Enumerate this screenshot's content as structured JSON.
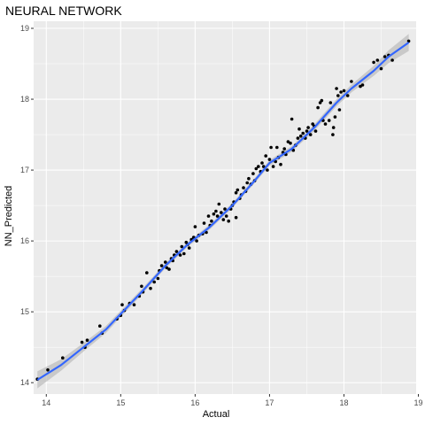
{
  "chart_data": {
    "type": "scatter",
    "title": "NEURAL NETWORK",
    "xlabel": "Actual",
    "ylabel": "NN_Predicted",
    "xlim": [
      13.83,
      18.97
    ],
    "ylim": [
      13.84,
      19.1
    ],
    "x_ticks": [
      "14",
      "15",
      "16",
      "17",
      "18",
      "19"
    ],
    "y_ticks": [
      "14",
      "15",
      "16",
      "17",
      "18",
      "19"
    ],
    "grid": true,
    "legend": "none",
    "colors": {
      "panel_background": "#ebebeb",
      "grid_major": "#ffffff",
      "points": "#000000",
      "smooth_line": "#3366ff",
      "confidence_band": "#bdbdbd"
    },
    "smooth_line": [
      [
        13.88,
        14.04
      ],
      [
        14.2,
        14.25
      ],
      [
        14.5,
        14.5
      ],
      [
        14.8,
        14.75
      ],
      [
        15.0,
        14.97
      ],
      [
        15.3,
        15.3
      ],
      [
        15.6,
        15.65
      ],
      [
        15.9,
        15.95
      ],
      [
        16.2,
        16.2
      ],
      [
        16.5,
        16.5
      ],
      [
        16.8,
        16.85
      ],
      [
        17.0,
        17.1
      ],
      [
        17.3,
        17.3
      ],
      [
        17.6,
        17.6
      ],
      [
        17.9,
        17.95
      ],
      [
        18.1,
        18.15
      ],
      [
        18.4,
        18.4
      ],
      [
        18.6,
        18.6
      ],
      [
        18.87,
        18.8
      ]
    ],
    "band_halfwidth": [
      0.12,
      0.08,
      0.06,
      0.05,
      0.045,
      0.04,
      0.035,
      0.035,
      0.035,
      0.035,
      0.035,
      0.04,
      0.04,
      0.045,
      0.05,
      0.055,
      0.07,
      0.09,
      0.12
    ],
    "points": [
      [
        13.88,
        14.05
      ],
      [
        14.02,
        14.18
      ],
      [
        14.22,
        14.35
      ],
      [
        14.48,
        14.57
      ],
      [
        14.52,
        14.5
      ],
      [
        14.55,
        14.6
      ],
      [
        14.72,
        14.8
      ],
      [
        14.75,
        14.7
      ],
      [
        14.95,
        14.9
      ],
      [
        15.0,
        14.95
      ],
      [
        15.02,
        15.1
      ],
      [
        15.05,
        15.02
      ],
      [
        15.12,
        15.12
      ],
      [
        15.18,
        15.1
      ],
      [
        15.25,
        15.22
      ],
      [
        15.28,
        15.36
      ],
      [
        15.3,
        15.28
      ],
      [
        15.35,
        15.55
      ],
      [
        15.4,
        15.33
      ],
      [
        15.45,
        15.42
      ],
      [
        15.5,
        15.47
      ],
      [
        15.52,
        15.58
      ],
      [
        15.55,
        15.65
      ],
      [
        15.6,
        15.7
      ],
      [
        15.62,
        15.62
      ],
      [
        15.65,
        15.6
      ],
      [
        15.68,
        15.75
      ],
      [
        15.7,
        15.72
      ],
      [
        15.72,
        15.8
      ],
      [
        15.75,
        15.85
      ],
      [
        15.8,
        15.8
      ],
      [
        15.82,
        15.92
      ],
      [
        15.85,
        15.82
      ],
      [
        15.88,
        15.98
      ],
      [
        15.9,
        15.95
      ],
      [
        15.92,
        15.9
      ],
      [
        15.95,
        16.02
      ],
      [
        15.98,
        16.05
      ],
      [
        16.0,
        16.2
      ],
      [
        16.02,
        16.0
      ],
      [
        16.05,
        16.08
      ],
      [
        16.1,
        16.1
      ],
      [
        16.12,
        16.25
      ],
      [
        16.15,
        16.12
      ],
      [
        16.18,
        16.35
      ],
      [
        16.2,
        16.22
      ],
      [
        16.22,
        16.28
      ],
      [
        16.25,
        16.38
      ],
      [
        16.28,
        16.42
      ],
      [
        16.3,
        16.35
      ],
      [
        16.32,
        16.52
      ],
      [
        16.35,
        16.4
      ],
      [
        16.38,
        16.3
      ],
      [
        16.4,
        16.45
      ],
      [
        16.42,
        16.35
      ],
      [
        16.45,
        16.28
      ],
      [
        16.48,
        16.45
      ],
      [
        16.5,
        16.5
      ],
      [
        16.52,
        16.55
      ],
      [
        16.55,
        16.68
      ],
      [
        16.55,
        16.33
      ],
      [
        16.57,
        16.72
      ],
      [
        16.6,
        16.6
      ],
      [
        16.62,
        16.65
      ],
      [
        16.65,
        16.75
      ],
      [
        16.68,
        16.7
      ],
      [
        16.7,
        16.82
      ],
      [
        16.72,
        16.88
      ],
      [
        16.75,
        16.8
      ],
      [
        16.78,
        16.95
      ],
      [
        16.8,
        16.85
      ],
      [
        16.82,
        17.02
      ],
      [
        16.85,
        17.05
      ],
      [
        16.88,
        16.98
      ],
      [
        16.9,
        17.1
      ],
      [
        16.92,
        17.05
      ],
      [
        16.95,
        17.2
      ],
      [
        16.97,
        17.0
      ],
      [
        17.0,
        17.15
      ],
      [
        17.02,
        17.32
      ],
      [
        17.05,
        17.05
      ],
      [
        17.08,
        17.12
      ],
      [
        17.1,
        17.32
      ],
      [
        17.12,
        17.18
      ],
      [
        17.15,
        17.08
      ],
      [
        17.18,
        17.25
      ],
      [
        17.2,
        17.3
      ],
      [
        17.22,
        17.22
      ],
      [
        17.25,
        17.4
      ],
      [
        17.28,
        17.38
      ],
      [
        17.3,
        17.72
      ],
      [
        17.32,
        17.28
      ],
      [
        17.35,
        17.35
      ],
      [
        17.38,
        17.45
      ],
      [
        17.4,
        17.58
      ],
      [
        17.42,
        17.48
      ],
      [
        17.45,
        17.52
      ],
      [
        17.48,
        17.45
      ],
      [
        17.5,
        17.55
      ],
      [
        17.52,
        17.6
      ],
      [
        17.55,
        17.5
      ],
      [
        17.58,
        17.65
      ],
      [
        17.6,
        17.62
      ],
      [
        17.62,
        17.55
      ],
      [
        17.65,
        17.88
      ],
      [
        17.68,
        17.95
      ],
      [
        17.7,
        17.98
      ],
      [
        17.72,
        17.7
      ],
      [
        17.75,
        17.65
      ],
      [
        17.8,
        17.7
      ],
      [
        17.82,
        17.95
      ],
      [
        17.85,
        17.5
      ],
      [
        17.86,
        17.6
      ],
      [
        17.88,
        17.75
      ],
      [
        17.9,
        18.15
      ],
      [
        17.92,
        18.05
      ],
      [
        17.94,
        17.85
      ],
      [
        17.96,
        18.1
      ],
      [
        18.0,
        18.12
      ],
      [
        18.05,
        18.05
      ],
      [
        18.1,
        18.25
      ],
      [
        18.22,
        18.18
      ],
      [
        18.25,
        18.2
      ],
      [
        18.4,
        18.52
      ],
      [
        18.45,
        18.55
      ],
      [
        18.5,
        18.43
      ],
      [
        18.55,
        18.6
      ],
      [
        18.6,
        18.62
      ],
      [
        18.65,
        18.55
      ],
      [
        18.87,
        18.82
      ]
    ]
  }
}
